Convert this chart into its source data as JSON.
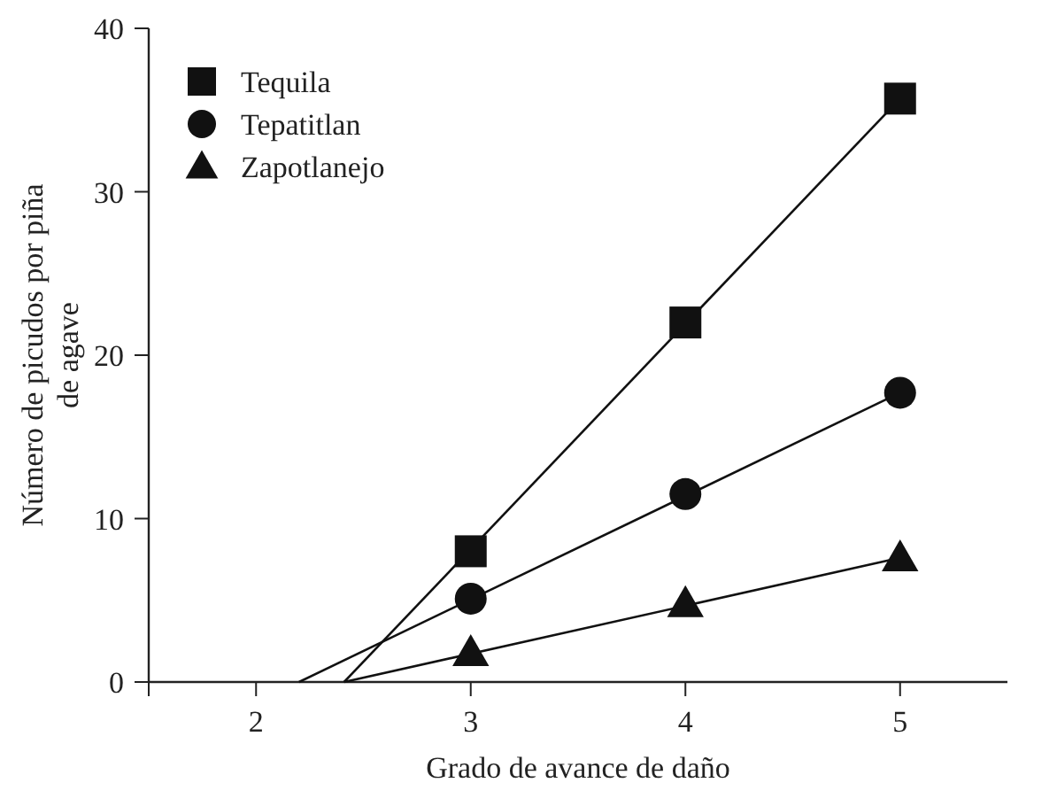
{
  "chart_data": {
    "type": "scatter",
    "xlabel": "Grado de avance de daño",
    "ylabel": "Número de picudos por piña de agave",
    "xlim": [
      1.5,
      5.5
    ],
    "xticks": [
      2,
      3,
      4,
      5
    ],
    "ylim": [
      0,
      40
    ],
    "yticks": [
      0,
      10,
      20,
      30,
      40
    ],
    "grid": false,
    "legend": "top left",
    "series": [
      {
        "name": "Tequila",
        "color": "#111111",
        "marker": "square",
        "x": [
          3,
          4,
          5
        ],
        "values": [
          8.0,
          22.0,
          35.7
        ]
      },
      {
        "name": "Tepatitlan",
        "color": "#111111",
        "marker": "circle",
        "x": [
          3,
          4,
          5
        ],
        "values": [
          5.1,
          11.5,
          17.7
        ]
      },
      {
        "name": "Zapotlanejo",
        "color": "#111111",
        "marker": "triangle",
        "x": [
          3,
          4,
          5
        ],
        "values": [
          1.8,
          4.8,
          7.6
        ]
      },
      {
        "type": "line",
        "color": "#111111",
        "marker": "none",
        "line_style": "solid",
        "x": [
          2.41,
          5
        ],
        "values": [
          0,
          35.7
        ]
      },
      {
        "type": "line",
        "color": "#111111",
        "marker": "none",
        "line_style": "solid",
        "x": [
          2.2,
          5
        ],
        "values": [
          0,
          17.7
        ]
      },
      {
        "type": "line",
        "color": "#111111",
        "marker": "none",
        "line_style": "solid",
        "x": [
          2.41,
          5
        ],
        "values": [
          0,
          7.6
        ]
      }
    ]
  }
}
